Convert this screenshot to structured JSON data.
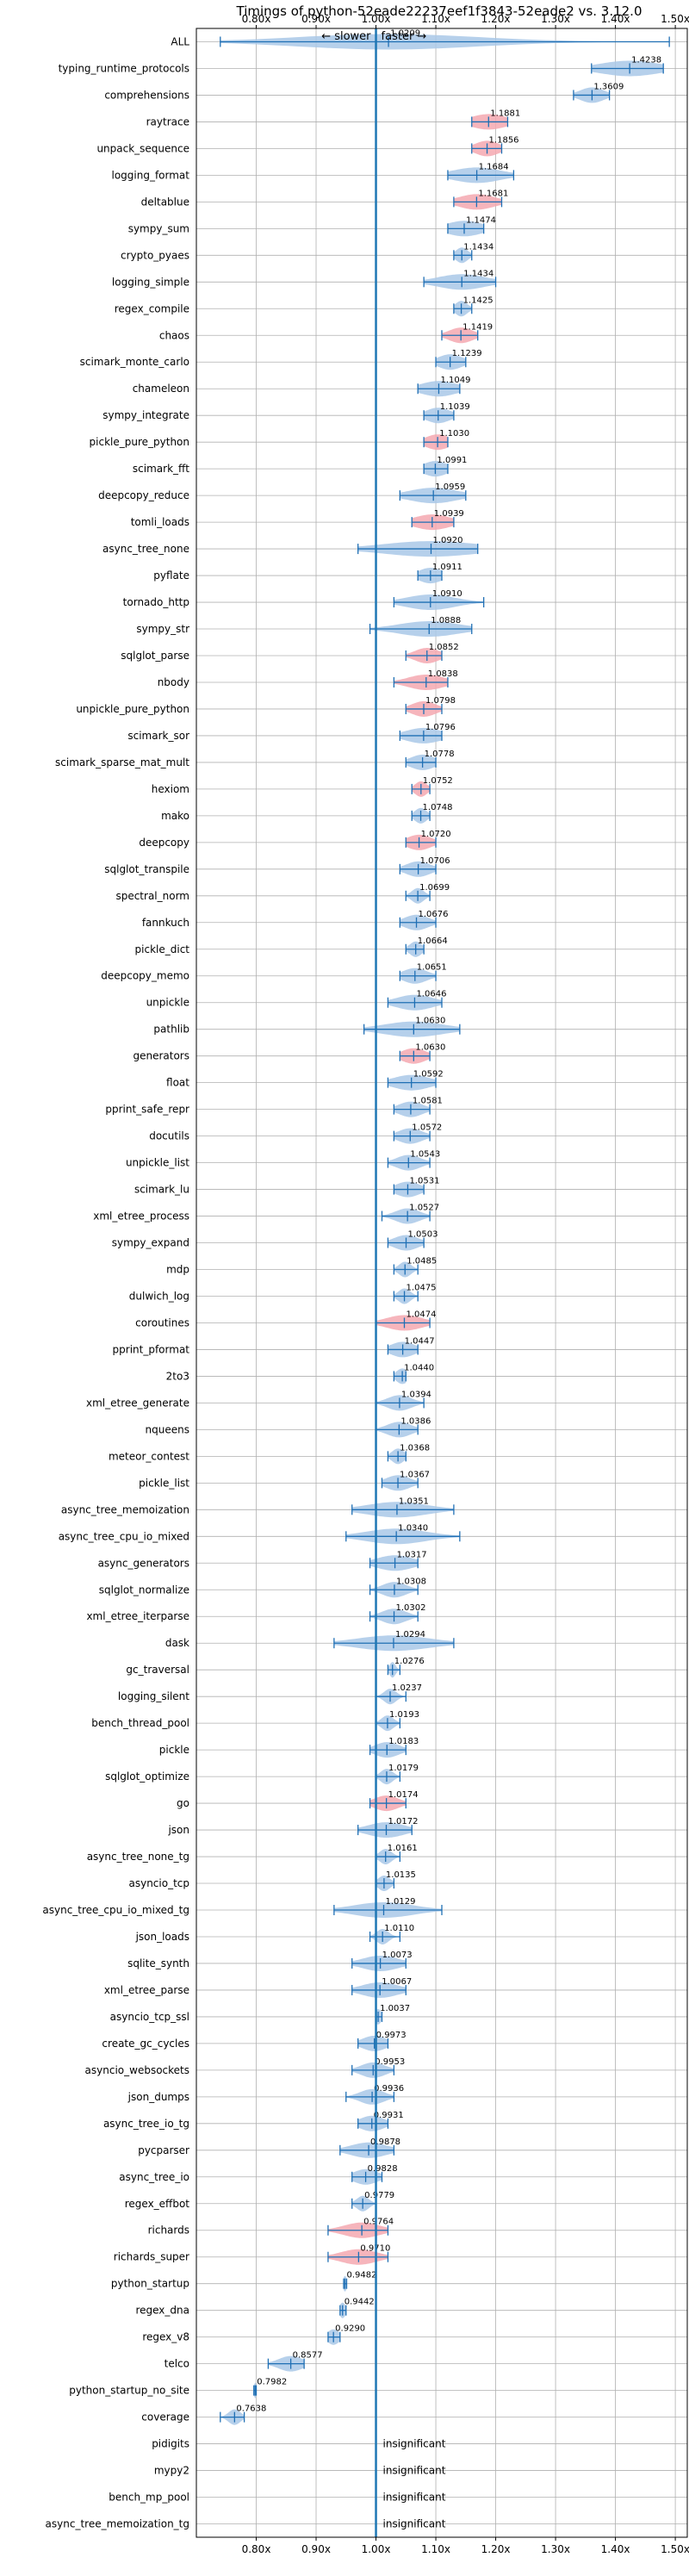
{
  "chart_data": {
    "type": "violin",
    "title": "Timings of python-52eade22237eef1f3843-52eade2 vs. 3.12.0",
    "xlim": [
      0.7,
      1.52
    ],
    "xticks": [
      0.8,
      0.9,
      1.0,
      1.1,
      1.2,
      1.3,
      1.4,
      1.5
    ],
    "xtick_labels": [
      "0.80x",
      "0.90x",
      "1.00x",
      "1.10x",
      "1.20x",
      "1.30x",
      "1.40x",
      "1.50x"
    ],
    "slower_label": "← slower",
    "faster_label": "faster →",
    "insignificant_label": "insignificant",
    "grid": true,
    "colors": {
      "faster": "#a9c8e8",
      "slower": "#f4a8b0",
      "line": "#1f6fb4",
      "baseline": "#1f77b4"
    },
    "benchmarks": [
      {
        "name": "ALL",
        "mean": 1.0209,
        "label": "1.0209",
        "min": 0.74,
        "max": 1.49,
        "spread": 0.15,
        "color": "blue"
      },
      {
        "name": "typing_runtime_protocols",
        "mean": 1.4238,
        "label": "1.4238",
        "min": 1.36,
        "max": 1.48,
        "spread": 0.05,
        "color": "blue"
      },
      {
        "name": "comprehensions",
        "mean": 1.3609,
        "label": "1.3609",
        "min": 1.33,
        "max": 1.39,
        "spread": 0.02,
        "color": "blue"
      },
      {
        "name": "raytrace",
        "mean": 1.1881,
        "label": "1.1881",
        "min": 1.16,
        "max": 1.22,
        "spread": 0.03,
        "color": "red"
      },
      {
        "name": "unpack_sequence",
        "mean": 1.1856,
        "label": "1.1856",
        "min": 1.16,
        "max": 1.21,
        "spread": 0.02,
        "color": "red"
      },
      {
        "name": "logging_format",
        "mean": 1.1684,
        "label": "1.1684",
        "min": 1.12,
        "max": 1.23,
        "spread": 0.04,
        "color": "blue"
      },
      {
        "name": "deltablue",
        "mean": 1.1681,
        "label": "1.1681",
        "min": 1.13,
        "max": 1.21,
        "spread": 0.03,
        "color": "red"
      },
      {
        "name": "sympy_sum",
        "mean": 1.1474,
        "label": "1.1474",
        "min": 1.12,
        "max": 1.18,
        "spread": 0.03,
        "color": "blue"
      },
      {
        "name": "crypto_pyaes",
        "mean": 1.1434,
        "label": "1.1434",
        "min": 1.13,
        "max": 1.16,
        "spread": 0.01,
        "color": "blue"
      },
      {
        "name": "logging_simple",
        "mean": 1.1434,
        "label": "1.1434",
        "min": 1.08,
        "max": 1.2,
        "spread": 0.04,
        "color": "blue"
      },
      {
        "name": "regex_compile",
        "mean": 1.1425,
        "label": "1.1425",
        "min": 1.13,
        "max": 1.16,
        "spread": 0.01,
        "color": "blue"
      },
      {
        "name": "chaos",
        "mean": 1.1419,
        "label": "1.1419",
        "min": 1.11,
        "max": 1.17,
        "spread": 0.02,
        "color": "red"
      },
      {
        "name": "scimark_monte_carlo",
        "mean": 1.1239,
        "label": "1.1239",
        "min": 1.1,
        "max": 1.15,
        "spread": 0.02,
        "color": "blue"
      },
      {
        "name": "chameleon",
        "mean": 1.1049,
        "label": "1.1049",
        "min": 1.07,
        "max": 1.14,
        "spread": 0.03,
        "color": "blue"
      },
      {
        "name": "sympy_integrate",
        "mean": 1.1039,
        "label": "1.1039",
        "min": 1.08,
        "max": 1.13,
        "spread": 0.02,
        "color": "blue"
      },
      {
        "name": "pickle_pure_python",
        "mean": 1.103,
        "label": "1.1030",
        "min": 1.08,
        "max": 1.12,
        "spread": 0.02,
        "color": "red"
      },
      {
        "name": "scimark_fft",
        "mean": 1.0991,
        "label": "1.0991",
        "min": 1.08,
        "max": 1.12,
        "spread": 0.02,
        "color": "blue"
      },
      {
        "name": "deepcopy_reduce",
        "mean": 1.0959,
        "label": "1.0959",
        "min": 1.04,
        "max": 1.15,
        "spread": 0.04,
        "color": "blue"
      },
      {
        "name": "tomli_loads",
        "mean": 1.0939,
        "label": "1.0939",
        "min": 1.06,
        "max": 1.13,
        "spread": 0.03,
        "color": "red"
      },
      {
        "name": "async_tree_none",
        "mean": 1.092,
        "label": "1.0920",
        "min": 0.97,
        "max": 1.17,
        "spread": 0.08,
        "color": "blue"
      },
      {
        "name": "pyflate",
        "mean": 1.0911,
        "label": "1.0911",
        "min": 1.07,
        "max": 1.11,
        "spread": 0.02,
        "color": "blue"
      },
      {
        "name": "tornado_http",
        "mean": 1.091,
        "label": "1.0910",
        "min": 1.03,
        "max": 1.18,
        "spread": 0.04,
        "color": "blue"
      },
      {
        "name": "sympy_str",
        "mean": 1.0888,
        "label": "1.0888",
        "min": 0.99,
        "max": 1.16,
        "spread": 0.05,
        "color": "blue"
      },
      {
        "name": "sqlglot_parse",
        "mean": 1.0852,
        "label": "1.0852",
        "min": 1.05,
        "max": 1.11,
        "spread": 0.02,
        "color": "red"
      },
      {
        "name": "nbody",
        "mean": 1.0838,
        "label": "1.0838",
        "min": 1.03,
        "max": 1.12,
        "spread": 0.03,
        "color": "red"
      },
      {
        "name": "unpickle_pure_python",
        "mean": 1.0798,
        "label": "1.0798",
        "min": 1.05,
        "max": 1.11,
        "spread": 0.02,
        "color": "red"
      },
      {
        "name": "scimark_sor",
        "mean": 1.0796,
        "label": "1.0796",
        "min": 1.04,
        "max": 1.11,
        "spread": 0.03,
        "color": "blue"
      },
      {
        "name": "scimark_sparse_mat_mult",
        "mean": 1.0778,
        "label": "1.0778",
        "min": 1.05,
        "max": 1.1,
        "spread": 0.02,
        "color": "blue"
      },
      {
        "name": "hexiom",
        "mean": 1.0752,
        "label": "1.0752",
        "min": 1.06,
        "max": 1.09,
        "spread": 0.01,
        "color": "red"
      },
      {
        "name": "mako",
        "mean": 1.0748,
        "label": "1.0748",
        "min": 1.06,
        "max": 1.09,
        "spread": 0.01,
        "color": "blue"
      },
      {
        "name": "deepcopy",
        "mean": 1.072,
        "label": "1.0720",
        "min": 1.05,
        "max": 1.1,
        "spread": 0.02,
        "color": "red"
      },
      {
        "name": "sqlglot_transpile",
        "mean": 1.0706,
        "label": "1.0706",
        "min": 1.04,
        "max": 1.1,
        "spread": 0.02,
        "color": "blue"
      },
      {
        "name": "spectral_norm",
        "mean": 1.0699,
        "label": "1.0699",
        "min": 1.05,
        "max": 1.09,
        "spread": 0.01,
        "color": "blue"
      },
      {
        "name": "fannkuch",
        "mean": 1.0676,
        "label": "1.0676",
        "min": 1.04,
        "max": 1.1,
        "spread": 0.02,
        "color": "blue"
      },
      {
        "name": "pickle_dict",
        "mean": 1.0664,
        "label": "1.0664",
        "min": 1.05,
        "max": 1.08,
        "spread": 0.01,
        "color": "blue"
      },
      {
        "name": "deepcopy_memo",
        "mean": 1.0651,
        "label": "1.0651",
        "min": 1.04,
        "max": 1.1,
        "spread": 0.02,
        "color": "blue"
      },
      {
        "name": "unpickle",
        "mean": 1.0646,
        "label": "1.0646",
        "min": 1.02,
        "max": 1.11,
        "spread": 0.03,
        "color": "blue"
      },
      {
        "name": "pathlib",
        "mean": 1.063,
        "label": "1.0630",
        "min": 0.98,
        "max": 1.14,
        "spread": 0.05,
        "color": "blue"
      },
      {
        "name": "generators",
        "mean": 1.063,
        "label": "1.0630",
        "min": 1.04,
        "max": 1.09,
        "spread": 0.02,
        "color": "red"
      },
      {
        "name": "float",
        "mean": 1.0592,
        "label": "1.0592",
        "min": 1.02,
        "max": 1.1,
        "spread": 0.03,
        "color": "blue"
      },
      {
        "name": "pprint_safe_repr",
        "mean": 1.0581,
        "label": "1.0581",
        "min": 1.03,
        "max": 1.09,
        "spread": 0.02,
        "color": "blue"
      },
      {
        "name": "docutils",
        "mean": 1.0572,
        "label": "1.0572",
        "min": 1.03,
        "max": 1.09,
        "spread": 0.02,
        "color": "blue"
      },
      {
        "name": "unpickle_list",
        "mean": 1.0543,
        "label": "1.0543",
        "min": 1.02,
        "max": 1.09,
        "spread": 0.02,
        "color": "blue"
      },
      {
        "name": "scimark_lu",
        "mean": 1.0531,
        "label": "1.0531",
        "min": 1.03,
        "max": 1.08,
        "spread": 0.02,
        "color": "blue"
      },
      {
        "name": "xml_etree_process",
        "mean": 1.0527,
        "label": "1.0527",
        "min": 1.01,
        "max": 1.09,
        "spread": 0.02,
        "color": "blue"
      },
      {
        "name": "sympy_expand",
        "mean": 1.0503,
        "label": "1.0503",
        "min": 1.02,
        "max": 1.08,
        "spread": 0.02,
        "color": "blue"
      },
      {
        "name": "mdp",
        "mean": 1.0485,
        "label": "1.0485",
        "min": 1.03,
        "max": 1.07,
        "spread": 0.01,
        "color": "blue"
      },
      {
        "name": "dulwich_log",
        "mean": 1.0475,
        "label": "1.0475",
        "min": 1.03,
        "max": 1.07,
        "spread": 0.01,
        "color": "blue"
      },
      {
        "name": "coroutines",
        "mean": 1.0474,
        "label": "1.0474",
        "min": 1.0,
        "max": 1.09,
        "spread": 0.03,
        "color": "red"
      },
      {
        "name": "pprint_pformat",
        "mean": 1.0447,
        "label": "1.0447",
        "min": 1.02,
        "max": 1.07,
        "spread": 0.02,
        "color": "blue"
      },
      {
        "name": "2to3",
        "mean": 1.044,
        "label": "1.0440",
        "min": 1.03,
        "max": 1.05,
        "spread": 0.01,
        "color": "blue"
      },
      {
        "name": "xml_etree_generate",
        "mean": 1.0394,
        "label": "1.0394",
        "min": 1.0,
        "max": 1.08,
        "spread": 0.02,
        "color": "blue"
      },
      {
        "name": "nqueens",
        "mean": 1.0386,
        "label": "1.0386",
        "min": 1.0,
        "max": 1.07,
        "spread": 0.02,
        "color": "blue"
      },
      {
        "name": "meteor_contest",
        "mean": 1.0368,
        "label": "1.0368",
        "min": 1.02,
        "max": 1.05,
        "spread": 0.01,
        "color": "blue"
      },
      {
        "name": "pickle_list",
        "mean": 1.0367,
        "label": "1.0367",
        "min": 1.01,
        "max": 1.07,
        "spread": 0.02,
        "color": "blue"
      },
      {
        "name": "async_tree_memoization",
        "mean": 1.0351,
        "label": "1.0351",
        "min": 0.96,
        "max": 1.13,
        "spread": 0.05,
        "color": "blue"
      },
      {
        "name": "async_tree_cpu_io_mixed",
        "mean": 1.034,
        "label": "1.0340",
        "min": 0.95,
        "max": 1.14,
        "spread": 0.05,
        "color": "blue"
      },
      {
        "name": "async_generators",
        "mean": 1.0317,
        "label": "1.0317",
        "min": 0.99,
        "max": 1.07,
        "spread": 0.03,
        "color": "blue"
      },
      {
        "name": "sqlglot_normalize",
        "mean": 1.0308,
        "label": "1.0308",
        "min": 0.99,
        "max": 1.07,
        "spread": 0.02,
        "color": "blue"
      },
      {
        "name": "xml_etree_iterparse",
        "mean": 1.0302,
        "label": "1.0302",
        "min": 0.99,
        "max": 1.07,
        "spread": 0.02,
        "color": "blue"
      },
      {
        "name": "dask",
        "mean": 1.0294,
        "label": "1.0294",
        "min": 0.93,
        "max": 1.13,
        "spread": 0.06,
        "color": "blue"
      },
      {
        "name": "gc_traversal",
        "mean": 1.0276,
        "label": "1.0276",
        "min": 1.02,
        "max": 1.04,
        "spread": 0.005,
        "color": "blue"
      },
      {
        "name": "logging_silent",
        "mean": 1.0237,
        "label": "1.0237",
        "min": 1.0,
        "max": 1.05,
        "spread": 0.01,
        "color": "blue"
      },
      {
        "name": "bench_thread_pool",
        "mean": 1.0193,
        "label": "1.0193",
        "min": 1.0,
        "max": 1.04,
        "spread": 0.01,
        "color": "blue"
      },
      {
        "name": "pickle",
        "mean": 1.0183,
        "label": "1.0183",
        "min": 0.99,
        "max": 1.05,
        "spread": 0.02,
        "color": "blue"
      },
      {
        "name": "sqlglot_optimize",
        "mean": 1.0179,
        "label": "1.0179",
        "min": 1.0,
        "max": 1.04,
        "spread": 0.01,
        "color": "blue"
      },
      {
        "name": "go",
        "mean": 1.0174,
        "label": "1.0174",
        "min": 0.99,
        "max": 1.05,
        "spread": 0.02,
        "color": "red"
      },
      {
        "name": "json",
        "mean": 1.0172,
        "label": "1.0172",
        "min": 0.97,
        "max": 1.06,
        "spread": 0.03,
        "color": "blue"
      },
      {
        "name": "async_tree_none_tg",
        "mean": 1.0161,
        "label": "1.0161",
        "min": 1.0,
        "max": 1.04,
        "spread": 0.01,
        "color": "blue"
      },
      {
        "name": "asyncio_tcp",
        "mean": 1.0135,
        "label": "1.0135",
        "min": 1.0,
        "max": 1.03,
        "spread": 0.01,
        "color": "blue"
      },
      {
        "name": "async_tree_cpu_io_mixed_tg",
        "mean": 1.0129,
        "label": "1.0129",
        "min": 0.93,
        "max": 1.11,
        "spread": 0.05,
        "color": "blue"
      },
      {
        "name": "json_loads",
        "mean": 1.011,
        "label": "1.0110",
        "min": 0.99,
        "max": 1.04,
        "spread": 0.01,
        "color": "blue"
      },
      {
        "name": "sqlite_synth",
        "mean": 1.0073,
        "label": "1.0073",
        "min": 0.96,
        "max": 1.05,
        "spread": 0.03,
        "color": "blue"
      },
      {
        "name": "xml_etree_parse",
        "mean": 1.0067,
        "label": "1.0067",
        "min": 0.96,
        "max": 1.05,
        "spread": 0.03,
        "color": "blue"
      },
      {
        "name": "asyncio_tcp_ssl",
        "mean": 1.0037,
        "label": "1.0037",
        "min": 1.0,
        "max": 1.01,
        "spread": 0.005,
        "color": "blue"
      },
      {
        "name": "create_gc_cycles",
        "mean": 0.9973,
        "label": "0.9973",
        "min": 0.97,
        "max": 1.02,
        "spread": 0.02,
        "color": "blue"
      },
      {
        "name": "asyncio_websockets",
        "mean": 0.9953,
        "label": "0.9953",
        "min": 0.96,
        "max": 1.03,
        "spread": 0.02,
        "color": "blue"
      },
      {
        "name": "json_dumps",
        "mean": 0.9936,
        "label": "0.9936",
        "min": 0.95,
        "max": 1.03,
        "spread": 0.02,
        "color": "blue"
      },
      {
        "name": "async_tree_io_tg",
        "mean": 0.9931,
        "label": "0.9931",
        "min": 0.97,
        "max": 1.02,
        "spread": 0.02,
        "color": "blue"
      },
      {
        "name": "pycparser",
        "mean": 0.9878,
        "label": "0.9878",
        "min": 0.94,
        "max": 1.03,
        "spread": 0.03,
        "color": "blue"
      },
      {
        "name": "async_tree_io",
        "mean": 0.9828,
        "label": "0.9828",
        "min": 0.96,
        "max": 1.01,
        "spread": 0.02,
        "color": "blue"
      },
      {
        "name": "regex_effbot",
        "mean": 0.9779,
        "label": "0.9779",
        "min": 0.96,
        "max": 1.0,
        "spread": 0.01,
        "color": "blue"
      },
      {
        "name": "richards",
        "mean": 0.9764,
        "label": "0.9764",
        "min": 0.92,
        "max": 1.02,
        "spread": 0.03,
        "color": "red"
      },
      {
        "name": "richards_super",
        "mean": 0.971,
        "label": "0.9710",
        "min": 0.92,
        "max": 1.02,
        "spread": 0.03,
        "color": "red"
      },
      {
        "name": "python_startup",
        "mean": 0.9482,
        "label": "0.9482",
        "min": 0.946,
        "max": 0.951,
        "spread": 0.003,
        "color": "blue"
      },
      {
        "name": "regex_dna",
        "mean": 0.9442,
        "label": "0.9442",
        "min": 0.94,
        "max": 0.95,
        "spread": 0.005,
        "color": "blue"
      },
      {
        "name": "regex_v8",
        "mean": 0.929,
        "label": "0.9290",
        "min": 0.92,
        "max": 0.94,
        "spread": 0.01,
        "color": "blue"
      },
      {
        "name": "telco",
        "mean": 0.8577,
        "label": "0.8577",
        "min": 0.82,
        "max": 0.88,
        "spread": 0.02,
        "color": "blue"
      },
      {
        "name": "python_startup_no_site",
        "mean": 0.7982,
        "label": "0.7982",
        "min": 0.796,
        "max": 0.8,
        "spread": 0.002,
        "color": "blue"
      },
      {
        "name": "coverage",
        "mean": 0.7638,
        "label": "0.7638",
        "min": 0.74,
        "max": 0.78,
        "spread": 0.01,
        "color": "blue"
      },
      {
        "name": "pidigits",
        "insignificant": true
      },
      {
        "name": "mypy2",
        "insignificant": true
      },
      {
        "name": "bench_mp_pool",
        "insignificant": true
      },
      {
        "name": "async_tree_memoization_tg",
        "insignificant": true
      }
    ]
  }
}
